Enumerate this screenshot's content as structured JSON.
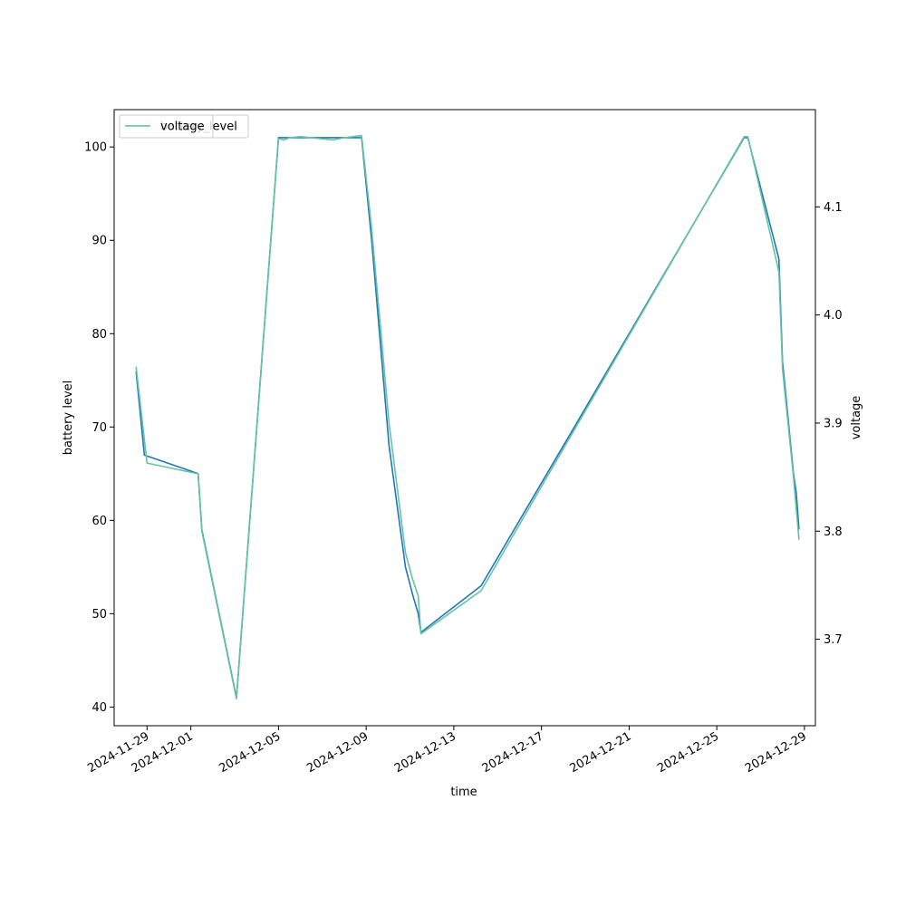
{
  "chart_data": {
    "type": "line",
    "xlabel": "time",
    "ylabel": "battery level",
    "ylabel_right": "voltage",
    "xlim": [
      "2024-11-27T12:00",
      "2024-12-29T12:00"
    ],
    "ylim": [
      38,
      104
    ],
    "ylim_right": [
      3.62,
      4.19
    ],
    "x_ticks": [
      "2024-11-29",
      "2024-12-01",
      "2024-12-05",
      "2024-12-09",
      "2024-12-13",
      "2024-12-17",
      "2024-12-21",
      "2024-12-25",
      "2024-12-29"
    ],
    "y_ticks": [
      40,
      50,
      60,
      70,
      80,
      90,
      100
    ],
    "y_ticks_right": [
      3.7,
      3.8,
      3.9,
      4.0,
      4.1
    ],
    "grid": false,
    "legend_position": "top-left",
    "legend_entries": [
      {
        "label": "battery_level",
        "color": "#1f77b4",
        "overlapped": true
      },
      {
        "label": "voltage",
        "color": "#66c2a5"
      }
    ],
    "series": [
      {
        "name": "battery_level",
        "axis": "left",
        "color": "#1f77b4",
        "points": [
          [
            "2024-11-28T12:00",
            76
          ],
          [
            "2024-11-28T21:00",
            67
          ],
          [
            "2024-12-01T08:00",
            65
          ],
          [
            "2024-12-01T12:00",
            59
          ],
          [
            "2024-12-03T02:00",
            41
          ],
          [
            "2024-12-05T00:00",
            101
          ],
          [
            "2024-12-08T19:00",
            101
          ],
          [
            "2024-12-09T06:00",
            90
          ],
          [
            "2024-12-10T01:00",
            68
          ],
          [
            "2024-12-10T19:00",
            55
          ],
          [
            "2024-12-11T03:00",
            52
          ],
          [
            "2024-12-11T09:00",
            50
          ],
          [
            "2024-12-11T12:00",
            48
          ],
          [
            "2024-12-14T06:00",
            53
          ],
          [
            "2024-12-26T06:00",
            101
          ],
          [
            "2024-12-26T10:00",
            101
          ],
          [
            "2024-12-27T20:00",
            88
          ],
          [
            "2024-12-28T00:00",
            77
          ],
          [
            "2024-12-28T12:00",
            65
          ],
          [
            "2024-12-28T15:00",
            63
          ],
          [
            "2024-12-28T18:00",
            59
          ]
        ]
      },
      {
        "name": "voltage",
        "axis": "right",
        "color": "#66c2a5",
        "points": [
          [
            "2024-11-28T12:00",
            3.952
          ],
          [
            "2024-11-29T00:00",
            3.863
          ],
          [
            "2024-12-01T08:00",
            3.853
          ],
          [
            "2024-12-01T12:00",
            3.8
          ],
          [
            "2024-12-03T02:00",
            3.645
          ],
          [
            "2024-12-05T00:00",
            4.163
          ],
          [
            "2024-12-05T06:00",
            4.162
          ],
          [
            "2024-12-05T12:00",
            4.164
          ],
          [
            "2024-12-06T00:00",
            4.165
          ],
          [
            "2024-12-07T12:00",
            4.162
          ],
          [
            "2024-12-08T00:00",
            4.164
          ],
          [
            "2024-12-08T19:00",
            4.166
          ],
          [
            "2024-12-09T06:00",
            4.08
          ],
          [
            "2024-12-10T01:00",
            3.9
          ],
          [
            "2024-12-10T19:00",
            3.78
          ],
          [
            "2024-12-11T03:00",
            3.755
          ],
          [
            "2024-12-11T09:00",
            3.74
          ],
          [
            "2024-12-11T12:00",
            3.705
          ],
          [
            "2024-12-14T06:00",
            3.745
          ],
          [
            "2024-12-26T06:00",
            4.165
          ],
          [
            "2024-12-26T10:00",
            4.165
          ],
          [
            "2024-12-27T20:00",
            4.04
          ],
          [
            "2024-12-28T00:00",
            3.95
          ],
          [
            "2024-12-28T12:00",
            3.85
          ],
          [
            "2024-12-28T18:00",
            3.792
          ]
        ]
      }
    ]
  }
}
